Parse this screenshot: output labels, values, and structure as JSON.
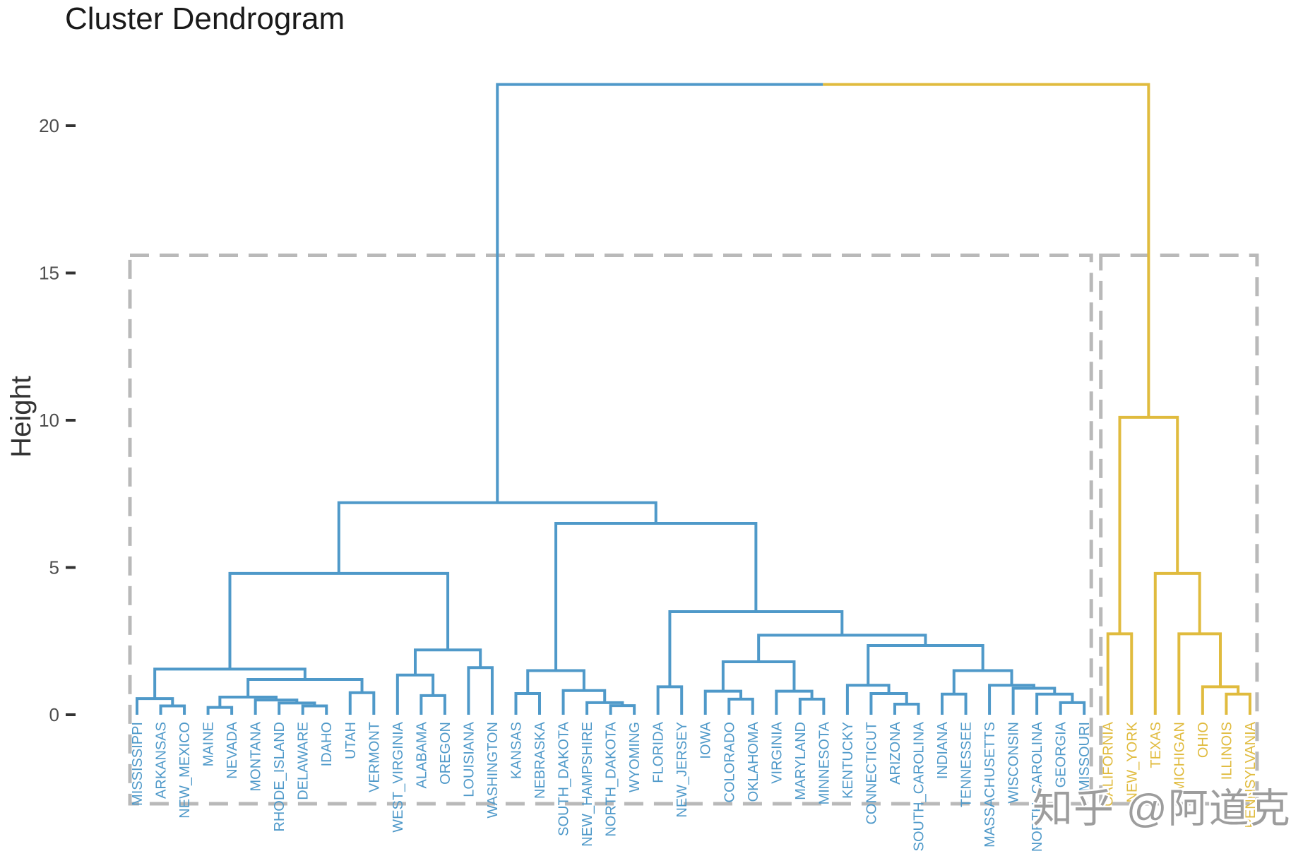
{
  "chart": {
    "title": "Cluster Dendrogram",
    "ylabel": "Height",
    "watermark": "知乎 @阿道克"
  },
  "colors": {
    "cluster1_blue": "#4f99c9",
    "cluster2_yellow": "#e0bb3e",
    "box_dash_gray": "#b9b9b9",
    "tick_mark": "#333333",
    "tick_text": "#4d4d4d",
    "title_text": "#1a1a1a",
    "ylabel_text": "#333333",
    "watermark_text": "#9d9d9d",
    "watermark_halo": "#ffffff"
  },
  "chart_data": {
    "type": "dendrogram",
    "title": "Cluster Dendrogram",
    "ylabel": "Height",
    "yticks": [
      20,
      15,
      10,
      5,
      0
    ],
    "ylim": [
      0,
      21.5
    ],
    "grid": false,
    "legend": "none",
    "leaf_label_rotation_deg": 90,
    "root_height": 21.4,
    "leaves": [
      "MISSISSIPPI",
      "ARKANSAS",
      "NEW_MEXICO",
      "MAINE",
      "NEVADA",
      "MONTANA",
      "RHODE_ISLAND",
      "DELAWARE",
      "IDAHO",
      "UTAH",
      "VERMONT",
      "WEST_VIRGINIA",
      "ALABAMA",
      "OREGON",
      "LOUISIANA",
      "WASHINGTON",
      "KANSAS",
      "NEBRASKA",
      "SOUTH_DAKOTA",
      "NEW_HAMPSHIRE",
      "NORTH_DAKOTA",
      "WYOMING",
      "FLORIDA",
      "NEW_JERSEY",
      "IOWA",
      "COLORADO",
      "OKLAHOMA",
      "VIRGINIA",
      "MARYLAND",
      "MINNESOTA",
      "KENTUCKY",
      "CONNECTICUT",
      "ARIZONA",
      "SOUTH_CAROLINA",
      "INDIANA",
      "TENNESSEE",
      "MASSACHUSETTS",
      "WISCONSIN",
      "NORTH_CAROLINA",
      "GEORGIA",
      "MISSOURI",
      "CALIFORNIA",
      "NEW_YORK",
      "TEXAS",
      "MICHIGAN",
      "OHIO",
      "ILLINOIS",
      "PENNSYLVANIA"
    ],
    "clusters": [
      {
        "id": 1,
        "color_key": "cluster1_blue",
        "leaf_range": [
          0,
          40
        ]
      },
      {
        "id": 2,
        "color_key": "cluster2_yellow",
        "leaf_range": [
          41,
          47
        ]
      }
    ],
    "cut_rectangles": {
      "top_height": 15.6,
      "style": "dashed",
      "groups": [
        [
          0,
          40
        ],
        [
          41,
          47
        ]
      ]
    },
    "tree": {
      "h": 21.4,
      "c": [
        {
          "h": 7.2,
          "c": [
            {
              "h": 4.8,
              "c": [
                {
                  "h": 1.55,
                  "c": [
                    {
                      "h": 0.55,
                      "c": [
                        0,
                        {
                          "h": 0.3,
                          "c": [
                            1,
                            2
                          ]
                        }
                      ]
                    },
                    {
                      "h": 1.2,
                      "c": [
                        {
                          "h": 0.6,
                          "c": [
                            {
                              "h": 0.25,
                              "c": [
                                3,
                                4
                              ]
                            },
                            {
                              "h": 0.5,
                              "c": [
                                5,
                                {
                                  "h": 0.4,
                                  "c": [
                                    6,
                                    {
                                      "h": 0.3,
                                      "c": [
                                        7,
                                        8
                                      ]
                                    }
                                  ]
                                }
                              ]
                            }
                          ]
                        },
                        {
                          "h": 0.75,
                          "c": [
                            9,
                            10
                          ]
                        }
                      ]
                    }
                  ]
                },
                {
                  "h": 2.2,
                  "c": [
                    {
                      "h": 1.35,
                      "c": [
                        11,
                        {
                          "h": 0.65,
                          "c": [
                            12,
                            13
                          ]
                        }
                      ]
                    },
                    {
                      "h": 1.6,
                      "c": [
                        14,
                        15
                      ]
                    }
                  ]
                }
              ]
            },
            {
              "h": 6.5,
              "c": [
                {
                  "h": 1.5,
                  "c": [
                    {
                      "h": 0.72,
                      "c": [
                        16,
                        17
                      ]
                    },
                    {
                      "h": 0.82,
                      "c": [
                        18,
                        {
                          "h": 0.41,
                          "c": [
                            19,
                            {
                              "h": 0.31,
                              "c": [
                                20,
                                21
                              ]
                            }
                          ]
                        }
                      ]
                    }
                  ]
                },
                {
                  "h": 3.5,
                  "c": [
                    {
                      "h": 0.95,
                      "c": [
                        22,
                        23
                      ]
                    },
                    {
                      "h": 2.7,
                      "c": [
                        {
                          "h": 1.8,
                          "c": [
                            {
                              "h": 0.8,
                              "c": [
                                24,
                                {
                                  "h": 0.53,
                                  "c": [
                                    25,
                                    26
                                  ]
                                }
                              ]
                            },
                            {
                              "h": 0.8,
                              "c": [
                                27,
                                {
                                  "h": 0.53,
                                  "c": [
                                    28,
                                    29
                                  ]
                                }
                              ]
                            }
                          ]
                        },
                        {
                          "h": 2.35,
                          "c": [
                            {
                              "h": 1.0,
                              "c": [
                                30,
                                {
                                  "h": 0.72,
                                  "c": [
                                    31,
                                    {
                                      "h": 0.36,
                                      "c": [
                                        32,
                                        33
                                      ]
                                    }
                                  ]
                                }
                              ]
                            },
                            {
                              "h": 1.5,
                              "c": [
                                {
                                  "h": 0.7,
                                  "c": [
                                    34,
                                    35
                                  ]
                                },
                                {
                                  "h": 1.0,
                                  "c": [
                                    36,
                                    {
                                      "h": 0.9,
                                      "c": [
                                        37,
                                        {
                                          "h": 0.7,
                                          "c": [
                                            38,
                                            {
                                              "h": 0.41,
                                              "c": [
                                                39,
                                                40
                                              ]
                                            }
                                          ]
                                        }
                                      ]
                                    }
                                  ]
                                }
                              ]
                            }
                          ]
                        }
                      ]
                    }
                  ]
                }
              ]
            }
          ]
        },
        {
          "h": 10.1,
          "c": [
            {
              "h": 2.75,
              "c": [
                41,
                42
              ]
            },
            {
              "h": 4.8,
              "c": [
                43,
                {
                  "h": 2.75,
                  "c": [
                    44,
                    {
                      "h": 0.95,
                      "c": [
                        45,
                        {
                          "h": 0.7,
                          "c": [
                            46,
                            47
                          ]
                        }
                      ]
                    }
                  ]
                }
              ]
            }
          ]
        }
      ]
    }
  }
}
